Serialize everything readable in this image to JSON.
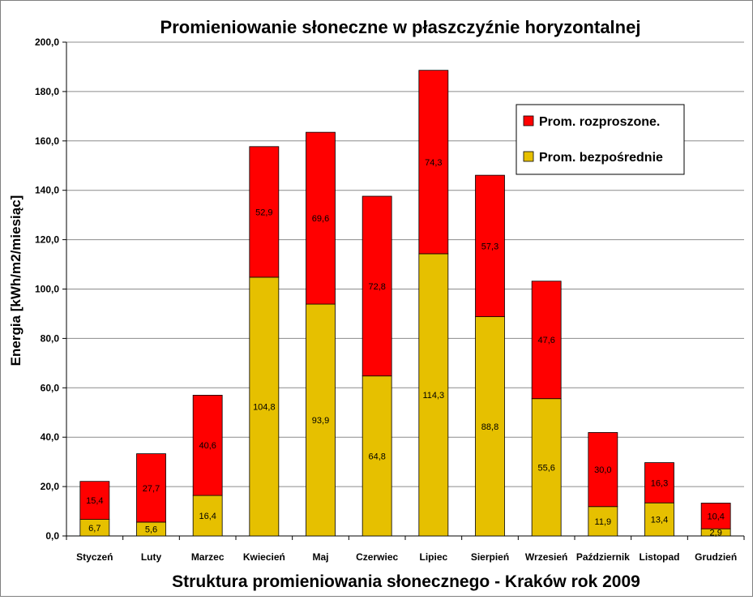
{
  "chart_data": {
    "type": "bar",
    "stacked": true,
    "title": "Promieniowanie słoneczne w płaszczyźnie horyzontalnej",
    "subtitle": "Struktura promieniowania słonecznego - Kraków rok 2009",
    "ylabel": "Energia [kWh/m2/miesiąc]",
    "xlabel": "",
    "ylim": [
      0,
      200
    ],
    "yticks": [
      "0,0",
      "20,0",
      "40,0",
      "60,0",
      "80,0",
      "100,0",
      "120,0",
      "140,0",
      "160,0",
      "180,0",
      "200,0"
    ],
    "grid": true,
    "legend_position": "top-right",
    "categories": [
      "Styczeń",
      "Luty",
      "Marzec",
      "Kwiecień",
      "Maj",
      "Czerwiec",
      "Lipiec",
      "Sierpień",
      "Wrzesień",
      "Październik",
      "Listopad",
      "Grudzień"
    ],
    "series": [
      {
        "name": "Prom. bezpośrednie",
        "color": "#e6c000",
        "values": [
          6.7,
          5.6,
          16.4,
          104.8,
          93.9,
          64.8,
          114.3,
          88.8,
          55.6,
          11.9,
          13.4,
          2.9
        ],
        "labels": [
          "6,7",
          "5,6",
          "16,4",
          "104,8",
          "93,9",
          "64,8",
          "114,3",
          "88,8",
          "55,6",
          "11,9",
          "13,4",
          "2,9"
        ]
      },
      {
        "name": "Prom. rozproszone.",
        "color": "#ff0000",
        "values": [
          15.4,
          27.7,
          40.6,
          52.9,
          69.6,
          72.8,
          74.3,
          57.3,
          47.6,
          30.0,
          16.3,
          10.4
        ],
        "labels": [
          "15,4",
          "27,7",
          "40,6",
          "52,9",
          "69,6",
          "72,8",
          "74,3",
          "57,3",
          "47,6",
          "30,0",
          "16,3",
          "10,4"
        ]
      }
    ],
    "legend_order": [
      1,
      0
    ]
  }
}
